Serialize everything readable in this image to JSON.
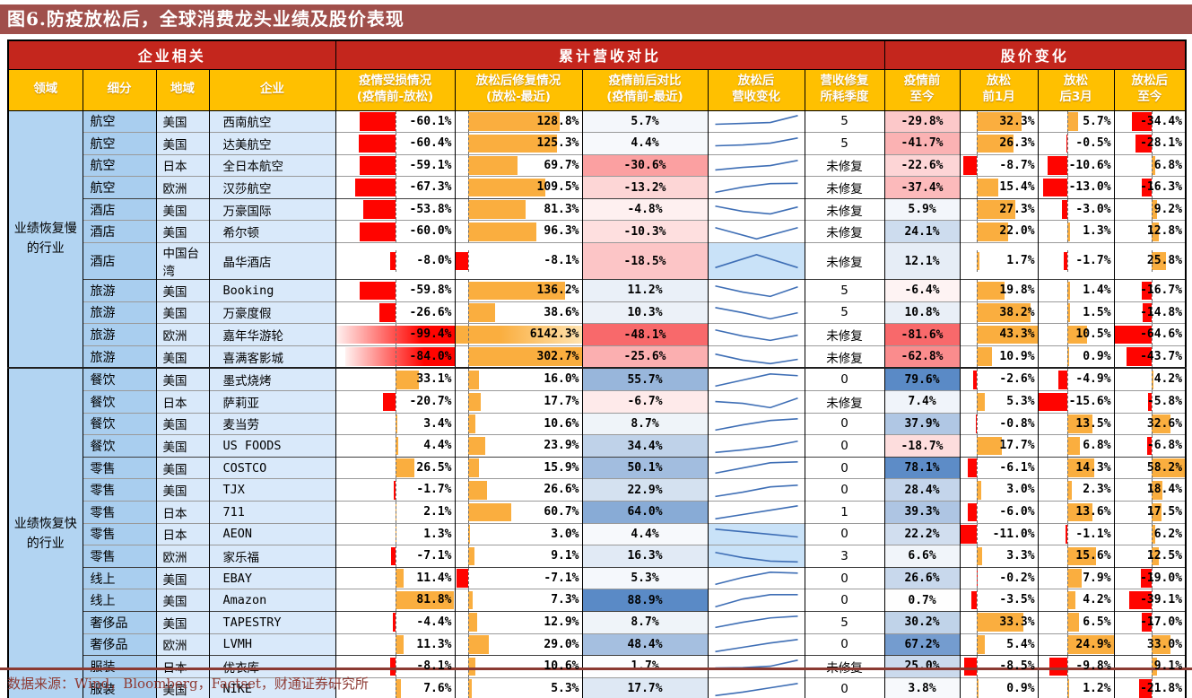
{
  "title": "图6.防疫放松后，全球消费龙头业绩及股价表现",
  "footer": {
    "source": "数据来源：Wind，Bloomberg，Factset，财通证券研究所"
  },
  "colors": {
    "title_bar_bg": "#A04F4B",
    "group_header_bg": "#C4261D",
    "column_header_bg": "#FFC000",
    "header_text": "#FFFFFF",
    "domain_cell_bg": "#B2D4F2",
    "segment_cell_bg": "#A9CEEF",
    "region_cell_bg": "#D9E9FA",
    "bar_positive": "#FAAE3F",
    "bar_negative": "#FF0400",
    "bar_positive_fade": "#FFE3B0",
    "bar_negative_fade": "#FFF1F0",
    "scale_blue_max": "#5A8AC6",
    "scale_red_min": "#F8696B",
    "scale_mid": "#FFFFFF",
    "sparkline": "#3E6EB5",
    "sparkline_highlight_bg": "#C9E2F8",
    "footer_rule": "#8B3A32",
    "footer_text": "#8E3B34"
  },
  "chart_data": {
    "type": "table",
    "title": "图6.防疫放松后，全球消费龙头业绩及股价表现",
    "group_headers": [
      {
        "label": "企业相关",
        "span": 4
      },
      {
        "label": "累计营收对比",
        "span": 5
      },
      {
        "label": "股价变化",
        "span": 4
      }
    ],
    "columns": [
      "领域",
      "细分",
      "地域",
      "企业",
      "疫情受损情况\n(疫情前-放松)",
      "放松后修复情况\n(放松-最近)",
      "疫情前后对比\n(疫情前-最近)",
      "放松后\n营收变化",
      "营收修复\n所耗季度",
      "疫情前\n至今",
      "放松\n前1月",
      "放松\n后3月",
      "放松后\n至今"
    ],
    "row_groups": [
      {
        "label": "业绩恢复慢的行业",
        "start": 0,
        "count": 11
      },
      {
        "label": "业绩恢复快的行业",
        "start": 11,
        "count": 15
      }
    ],
    "section_starts": [
      4,
      7,
      11,
      15,
      20,
      22,
      24
    ],
    "bar_config": {
      "damage": {
        "axis": 0.5,
        "neg": 99.4,
        "pos": 82
      },
      "recovery": {
        "axis": 0.1,
        "neg": 8.1,
        "pos": 160
      },
      "before_1m": {
        "axis": 0.22,
        "neg": 11.0,
        "pos": 43.3
      },
      "after_3m": {
        "axis": 0.385,
        "neg": 15.6,
        "pos": 24.9
      },
      "after_now": {
        "axis": 0.525,
        "neg": 64.6,
        "pos": 58.2
      }
    },
    "color_scales": {
      "compare": {
        "min": -48.1,
        "max": 88.9
      },
      "since_pre": {
        "min": -81.6,
        "max": 79.6
      }
    },
    "rows": [
      {
        "segment": "航空",
        "region": "美国",
        "company": "西南航空",
        "damage": -60.1,
        "recovery": 128.8,
        "compare": 5.7,
        "spark": [
          3.5,
          4,
          4.5,
          8.5
        ],
        "quarters": "5",
        "since_pre": -29.8,
        "before_1m": 32.3,
        "after_3m": 5.7,
        "after_now": -34.4
      },
      {
        "segment": "航空",
        "region": "美国",
        "company": "达美航空",
        "damage": -60.4,
        "recovery": 125.3,
        "compare": 4.4,
        "spark": [
          3.5,
          4,
          5,
          8
        ],
        "quarters": "5",
        "since_pre": -41.7,
        "before_1m": 26.3,
        "after_3m": -0.5,
        "after_now": -28.1
      },
      {
        "segment": "航空",
        "region": "日本",
        "company": "全日本航空",
        "damage": -59.1,
        "recovery": 69.7,
        "compare": -30.6,
        "spark": [
          2.5,
          4,
          5,
          8
        ],
        "quarters": "未修复",
        "since_pre": -22.6,
        "before_1m": -8.7,
        "after_3m": -10.6,
        "after_now": 6.8
      },
      {
        "segment": "航空",
        "region": "欧洲",
        "company": "汉莎航空",
        "damage": -67.3,
        "recovery": 109.5,
        "compare": -13.2,
        "spark": [
          2,
          5,
          7,
          7.2
        ],
        "quarters": "未修复",
        "since_pre": -37.4,
        "before_1m": 15.4,
        "after_3m": -13.0,
        "after_now": -16.3
      },
      {
        "segment": "酒店",
        "region": "美国",
        "company": "万豪国际",
        "damage": -53.8,
        "recovery": 81.3,
        "compare": -4.8,
        "spark": [
          7,
          4,
          2.5,
          6.5
        ],
        "quarters": "未修复",
        "since_pre": 5.9,
        "before_1m": 27.3,
        "after_3m": -3.0,
        "after_now": 9.2
      },
      {
        "segment": "酒店",
        "region": "美国",
        "company": "希尔顿",
        "damage": -60.0,
        "recovery": 96.3,
        "compare": -10.3,
        "spark": [
          7.5,
          1,
          7.5
        ],
        "quarters": "未修复",
        "since_pre": 24.1,
        "before_1m": 22.0,
        "after_3m": 1.3,
        "after_now": 12.8
      },
      {
        "segment": "酒店",
        "region": "中国台湾",
        "company": "晶华酒店",
        "damage": -8.0,
        "recovery": -8.1,
        "compare": -18.5,
        "spark": [
          1,
          8.5,
          1
        ],
        "spark_bg": true,
        "quarters": "未修复",
        "since_pre": 12.1,
        "before_1m": 1.7,
        "after_3m": -1.7,
        "after_now": 25.8
      },
      {
        "segment": "旅游",
        "region": "美国",
        "company": "Booking",
        "damage": -59.8,
        "recovery": 136.2,
        "compare": 11.2,
        "spark": [
          7.5,
          4,
          1.5,
          7
        ],
        "quarters": "5",
        "since_pre": -6.4,
        "before_1m": 19.8,
        "after_3m": 1.4,
        "after_now": -16.7
      },
      {
        "segment": "旅游",
        "region": "美国",
        "company": "万豪度假",
        "damage": -26.6,
        "recovery": 38.6,
        "compare": 10.3,
        "spark": [
          8,
          5,
          1.5,
          5
        ],
        "quarters": "5",
        "since_pre": 10.8,
        "before_1m": 38.2,
        "after_3m": 1.5,
        "after_now": -14.8
      },
      {
        "segment": "旅游",
        "region": "欧洲",
        "company": "嘉年华游轮",
        "damage": -99.4,
        "damage_gradient": true,
        "recovery": 6142.3,
        "recovery_gradient": true,
        "compare": -48.1,
        "spark": [
          7.5,
          4,
          1.5,
          4.5
        ],
        "quarters": "未修复",
        "since_pre": -81.6,
        "before_1m": 43.3,
        "after_3m": 10.5,
        "after_now": -64.6
      },
      {
        "segment": "旅游",
        "region": "美国",
        "company": "喜满客影城",
        "damage": -84.0,
        "damage_gradient": true,
        "recovery": 302.7,
        "compare": -25.6,
        "spark": [
          6.5,
          3,
          1,
          3.5
        ],
        "quarters": "未修复",
        "since_pre": -62.8,
        "before_1m": 10.9,
        "after_3m": 0.9,
        "after_now": -43.7
      },
      {
        "segment": "餐饮",
        "region": "美国",
        "company": "墨式烧烤",
        "damage": 33.1,
        "recovery": 16.0,
        "compare": 55.7,
        "spark": [
          1.5,
          5,
          8.5,
          7.5
        ],
        "quarters": "0",
        "since_pre": 79.6,
        "before_1m": -2.6,
        "after_3m": -4.9,
        "after_now": 4.2
      },
      {
        "segment": "餐饮",
        "region": "日本",
        "company": "萨莉亚",
        "damage": -20.7,
        "recovery": 17.7,
        "compare": -6.7,
        "spark": [
          5,
          4,
          1.5,
          7
        ],
        "quarters": "未修复",
        "since_pre": 7.4,
        "before_1m": 5.3,
        "after_3m": -15.6,
        "after_now": -5.8
      },
      {
        "segment": "餐饮",
        "region": "美国",
        "company": "麦当劳",
        "damage": 3.4,
        "recovery": 10.6,
        "compare": 8.7,
        "spark": [
          1.5,
          4.5,
          7,
          8
        ],
        "quarters": "0",
        "since_pre": 37.9,
        "before_1m": -0.8,
        "after_3m": 13.5,
        "after_now": 32.6
      },
      {
        "segment": "餐饮",
        "region": "美国",
        "company": "US FOODS",
        "damage": 4.4,
        "recovery": 23.9,
        "compare": 34.4,
        "spark": [
          1,
          2.5,
          4.5,
          7.5
        ],
        "quarters": "0",
        "since_pre": -18.7,
        "before_1m": 17.7,
        "after_3m": 6.8,
        "after_now": -6.8
      },
      {
        "segment": "零售",
        "region": "美国",
        "company": "COSTCO",
        "damage": 26.5,
        "recovery": 15.9,
        "compare": 50.1,
        "spark": [
          2,
          5,
          8,
          8.5
        ],
        "quarters": "0",
        "since_pre": 78.1,
        "before_1m": -6.1,
        "after_3m": 14.3,
        "after_now": 58.2
      },
      {
        "segment": "零售",
        "region": "美国",
        "company": "TJX",
        "damage": -1.7,
        "recovery": 26.6,
        "compare": 22.9,
        "spark": [
          1.5,
          4,
          7,
          8
        ],
        "quarters": "0",
        "since_pre": 28.4,
        "before_1m": 3.0,
        "after_3m": 2.3,
        "after_now": 18.4
      },
      {
        "segment": "零售",
        "region": "日本",
        "company": "711",
        "damage": 2.1,
        "recovery": 60.7,
        "compare": 64.0,
        "spark": [
          1,
          3.5,
          6,
          8.5
        ],
        "quarters": "1",
        "since_pre": 39.3,
        "before_1m": -6.0,
        "after_3m": 13.6,
        "after_now": 17.5
      },
      {
        "segment": "零售",
        "region": "日本",
        "company": "AEON",
        "damage": 1.3,
        "recovery": 3.0,
        "compare": 4.4,
        "spark": [
          8,
          6.5,
          5,
          3.5
        ],
        "spark_bg": true,
        "quarters": "0",
        "since_pre": 22.2,
        "before_1m": -11.0,
        "after_3m": -1.1,
        "after_now": 6.2
      },
      {
        "segment": "零售",
        "region": "欧洲",
        "company": "家乐福",
        "damage": -7.1,
        "recovery": 9.1,
        "compare": 16.3,
        "spark": [
          7,
          4,
          2,
          1.5
        ],
        "spark_bg": true,
        "quarters": "3",
        "since_pre": 6.6,
        "before_1m": 3.3,
        "after_3m": 15.6,
        "after_now": 12.5
      },
      {
        "segment": "线上",
        "region": "美国",
        "company": "EBAY",
        "damage": 11.4,
        "recovery": -7.1,
        "compare": 5.3,
        "spark": [
          1.5,
          5.5,
          8.5,
          8
        ],
        "quarters": "0",
        "since_pre": 26.6,
        "before_1m": -0.2,
        "after_3m": 7.9,
        "after_now": -19.0
      },
      {
        "segment": "线上",
        "region": "美国",
        "company": "Amazon",
        "damage": 81.8,
        "recovery": 7.3,
        "compare": 88.9,
        "spark": [
          1.5,
          6,
          8.5,
          8.5
        ],
        "quarters": "0",
        "since_pre": 0.7,
        "before_1m": -3.5,
        "after_3m": 4.2,
        "after_now": -39.1
      },
      {
        "segment": "奢侈品",
        "region": "美国",
        "company": "TAPESTRY",
        "damage": -4.4,
        "recovery": 12.9,
        "compare": 8.7,
        "spark": [
          2,
          5,
          7.5,
          8.5
        ],
        "quarters": "5",
        "since_pre": 30.2,
        "before_1m": 33.3,
        "after_3m": 6.5,
        "after_now": -17.0
      },
      {
        "segment": "奢侈品",
        "region": "欧洲",
        "company": "LVMH",
        "damage": 11.3,
        "recovery": 29.0,
        "compare": 48.4,
        "spark": [
          1,
          3.5,
          6,
          8
        ],
        "quarters": "0",
        "since_pre": 67.2,
        "before_1m": 5.4,
        "after_3m": 24.9,
        "after_now": 33.0
      },
      {
        "segment": "服装",
        "region": "日本",
        "company": "优衣库",
        "damage": -8.1,
        "recovery": 10.6,
        "compare": 1.7,
        "spark": [
          4,
          4.2,
          5,
          8.5
        ],
        "quarters": "未修复",
        "since_pre": 25.0,
        "before_1m": -8.5,
        "after_3m": -9.8,
        "after_now": 9.1
      },
      {
        "segment": "服装",
        "region": "美国",
        "company": "NIKE",
        "damage": 7.6,
        "recovery": 5.3,
        "compare": 17.7,
        "spark": [
          1,
          3,
          5.5,
          8
        ],
        "quarters": "0",
        "since_pre": 3.8,
        "before_1m": 0.9,
        "after_3m": 1.2,
        "after_now": -21.8
      }
    ]
  }
}
